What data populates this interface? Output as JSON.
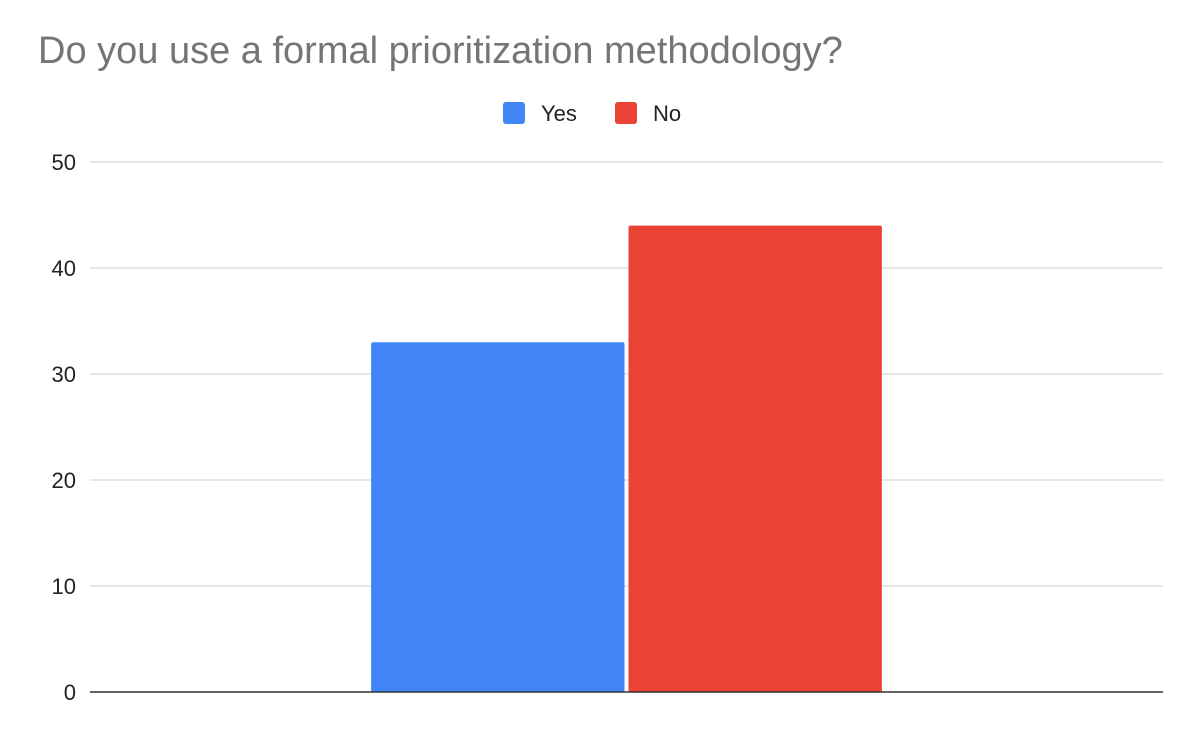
{
  "chart_data": {
    "type": "bar",
    "title": "Do you use a formal prioritization methodology?",
    "xlabel": "",
    "ylabel": "",
    "categories": [
      ""
    ],
    "series": [
      {
        "name": "Yes",
        "values": [
          33
        ],
        "color": "#4285f4"
      },
      {
        "name": "No",
        "values": [
          44
        ],
        "color": "#ea4335"
      }
    ],
    "ylim": [
      0,
      50
    ],
    "yticks": [
      0,
      10,
      20,
      30,
      40,
      50
    ],
    "grid": true,
    "legend_position": "top-center"
  }
}
